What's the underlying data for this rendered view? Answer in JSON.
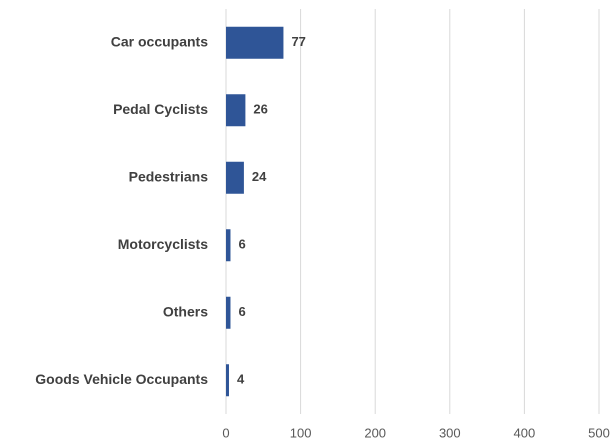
{
  "chart_data": {
    "type": "bar",
    "orientation": "horizontal",
    "categories": [
      "Car occupants",
      "Pedal Cyclists",
      "Pedestrians",
      "Motorcyclists",
      "Others",
      "Goods Vehicle Occupants"
    ],
    "values": [
      77,
      26,
      24,
      6,
      6,
      4
    ],
    "color": "#2f5597",
    "xlim": [
      0,
      500
    ],
    "xticks": [
      0,
      100,
      200,
      300,
      400,
      500
    ],
    "grid": true
  }
}
